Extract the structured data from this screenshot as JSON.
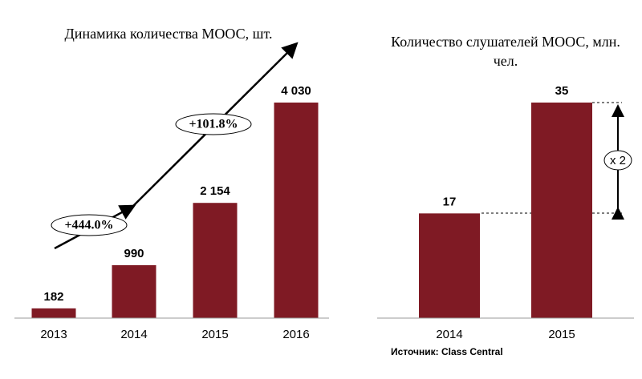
{
  "chart_data": [
    {
      "type": "bar",
      "title": "Динамика количества МООС, шт.",
      "categories": [
        "2013",
        "2014",
        "2015",
        "2016"
      ],
      "values": [
        182,
        990,
        2154,
        4030
      ],
      "value_labels": [
        "182",
        "990",
        "2 154",
        "4 030"
      ],
      "color": "#7f1a24",
      "annotations": [
        "+444.0%",
        "+101.8%"
      ]
    },
    {
      "type": "bar",
      "title": "Количество слушателей МООС, млн. чел.",
      "categories": [
        "2014",
        "2015"
      ],
      "values": [
        17,
        35
      ],
      "color": "#7f1a24",
      "annotations": [
        "x 2"
      ]
    }
  ],
  "source": "Источник: Class Central"
}
